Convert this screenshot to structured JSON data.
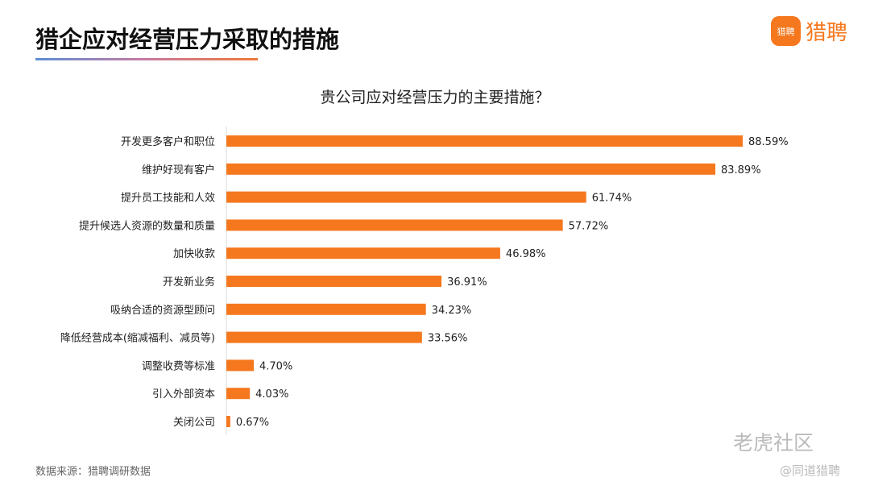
{
  "header": {
    "title": "猎企应对经营压力采取的措施",
    "logo_badge": "猎聘",
    "logo_text": "猎聘"
  },
  "chart_data": {
    "type": "bar",
    "orientation": "horizontal",
    "title": "贵公司应对经营压力的主要措施？",
    "categories": [
      "开发更多客户和职位",
      "维护好现有客户",
      "提升员工技能和人效",
      "提升候选人资源的数量和质量",
      "加快收款",
      "开发新业务",
      "吸纳合适的资源型顾问",
      "降低经营成本(缩减福利、减员等)",
      "调整收费等标准",
      "引入外部资本",
      "关闭公司"
    ],
    "values": [
      88.59,
      83.89,
      61.74,
      57.72,
      46.98,
      36.91,
      34.23,
      33.56,
      4.7,
      4.03,
      0.67
    ],
    "labels": [
      "88.59%",
      "83.89%",
      "61.74%",
      "57.72%",
      "46.98%",
      "36.91%",
      "34.23%",
      "33.56%",
      "4.70%",
      "4.03%",
      "0.67%"
    ],
    "unit": "%",
    "bar_color": "#f5781e",
    "grid": false
  },
  "footer": {
    "source": "数据来源：猎聘调研数据",
    "watermark1": "老虎社区",
    "watermark2": "@同道猎聘"
  }
}
